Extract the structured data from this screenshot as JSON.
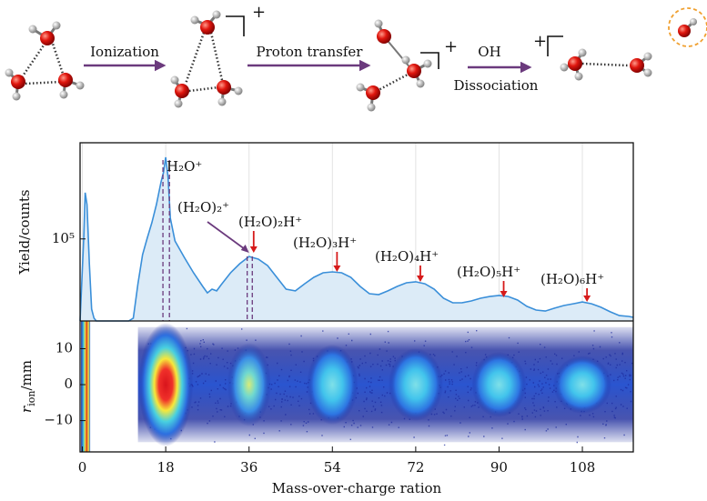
{
  "schematic": {
    "steps": [
      "Ionization",
      "Proton transfer",
      "OH",
      "Dissociation"
    ],
    "charges": [
      "+",
      "+",
      "+"
    ]
  },
  "chart_data": [
    {
      "type": "line",
      "ylabel": "Yield/counts",
      "log_y": true,
      "xlim": [
        -0.5,
        119
      ],
      "ylim": [
        12000,
        1200000
      ],
      "yticks": [
        {
          "value": 100000,
          "label": "10⁵"
        }
      ],
      "vgrid": true,
      "x": [
        -0.5,
        0.3,
        0.6,
        1,
        1.5,
        2,
        2.5,
        3,
        10,
        11,
        12,
        13,
        14,
        15,
        16,
        17,
        17.5,
        18,
        18.5,
        19,
        20,
        22,
        24,
        26,
        27,
        28,
        29,
        30,
        32,
        34,
        36,
        38,
        40,
        42,
        44,
        46,
        48,
        50,
        52,
        54,
        56,
        58,
        60,
        62,
        64,
        66,
        68,
        70,
        72,
        74,
        76,
        78,
        80,
        82,
        84,
        86,
        88,
        90,
        92,
        94,
        96,
        98,
        100,
        102,
        104,
        106,
        108,
        110,
        112,
        114,
        116,
        118,
        119
      ],
      "values": [
        12000,
        107000,
        330000,
        243000,
        52700,
        16300,
        12900,
        12000,
        12000,
        12900,
        31400,
        66700,
        102000,
        152000,
        243000,
        437000,
        552000,
        824000,
        491000,
        171000,
        94800,
        62100,
        41700,
        29300,
        24800,
        27300,
        26100,
        30700,
        41700,
        52700,
        63500,
        59300,
        50200,
        37100,
        27300,
        26100,
        31400,
        37100,
        41700,
        42700,
        41700,
        37100,
        29300,
        24300,
        23700,
        26100,
        29300,
        32200,
        33000,
        31400,
        27300,
        21600,
        19200,
        19200,
        20100,
        21600,
        22600,
        23200,
        22600,
        20600,
        17500,
        15900,
        15500,
        16700,
        17900,
        18700,
        19600,
        18700,
        17100,
        15200,
        13800,
        13500,
        13200
      ],
      "color": "#3a8fd9",
      "fill": "#dcebf7",
      "dashed_x": [
        17.4,
        18.8,
        35.6,
        36.7
      ],
      "dash_color": "#6b3a7d",
      "arrow_color": "#d61a1a",
      "annotations": [
        {
          "text": "H₂O⁺",
          "x": 18
        },
        {
          "text": "(H₂O)₂⁺",
          "x": 36
        },
        {
          "text": "(H₂O)₂H⁺",
          "x": 37
        },
        {
          "text": "(H₂O)₃H⁺",
          "x": 55
        },
        {
          "text": "(H₂O)₄H⁺",
          "x": 73
        },
        {
          "text": "(H₂O)₅H⁺",
          "x": 91
        },
        {
          "text": "(H₂O)₆H⁺",
          "x": 109
        }
      ]
    },
    {
      "type": "heatmap",
      "xlabel": "Mass-over-charge ration",
      "ylabel_parts": [
        "r",
        "ion",
        "/mm"
      ],
      "xlim": [
        -0.5,
        119
      ],
      "ylim": [
        -18.7,
        17.7
      ],
      "xticks": [
        0,
        18,
        36,
        54,
        72,
        90,
        108
      ],
      "yticks": [
        {
          "value": -10,
          "label": "−10"
        },
        0,
        10
      ],
      "clusters": {
        "x": [
          0.7,
          18,
          36,
          54,
          72,
          90,
          108
        ],
        "y": [
          0,
          0,
          0,
          0,
          0,
          0,
          0
        ]
      }
    }
  ]
}
